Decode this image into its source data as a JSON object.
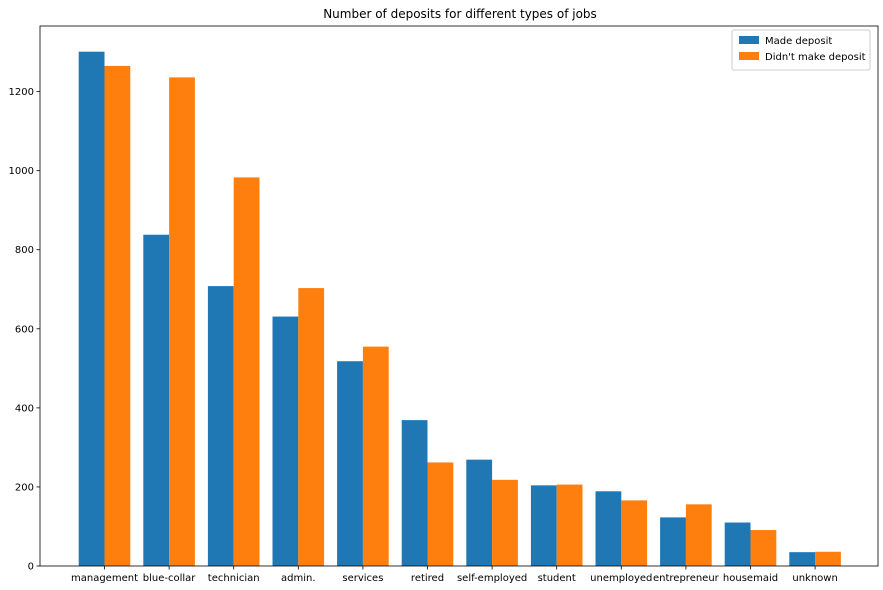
{
  "chart_data": {
    "type": "bar",
    "title": "Number of deposits for different types of jobs",
    "xlabel": "",
    "ylabel": "",
    "categories": [
      "management",
      "blue-collar",
      "technician",
      "admin.",
      "services",
      "retired",
      "self-employed",
      "student",
      "unemployed",
      "entrepreneur",
      "housemaid",
      "unknown"
    ],
    "series": [
      {
        "name": "Made deposit",
        "color": "#1f77b4",
        "values": [
          1301,
          838,
          708,
          631,
          518,
          369,
          269,
          204,
          189,
          123,
          110,
          35
        ]
      },
      {
        "name": "Didn't make deposit",
        "color": "#ff7f0e",
        "values": [
          1265,
          1236,
          983,
          703,
          555,
          262,
          218,
          206,
          166,
          156,
          91,
          36
        ]
      }
    ],
    "ylim": [
      0,
      1366
    ],
    "yticks": [
      0,
      200,
      400,
      600,
      800,
      1000,
      1200
    ],
    "grid": false,
    "legend_position": "top-right"
  }
}
